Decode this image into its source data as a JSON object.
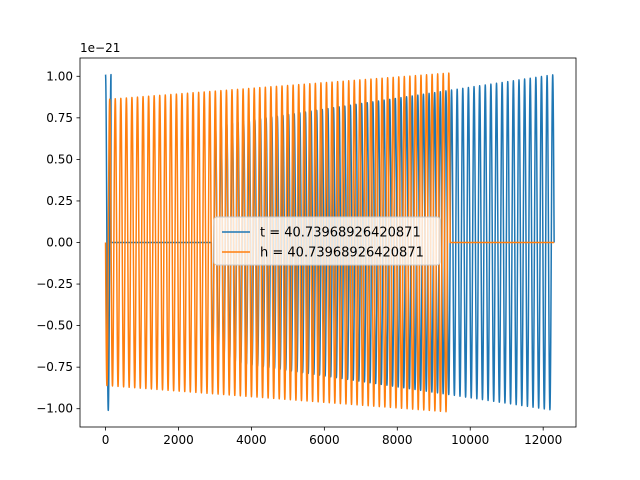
{
  "chart_data": {
    "type": "line",
    "offset_text": "1e−21",
    "xlim": [
      -700,
      12900
    ],
    "ylim": [
      -1.11,
      1.11
    ],
    "x_ticks": [
      0,
      2000,
      4000,
      6000,
      8000,
      10000,
      12000
    ],
    "x_tick_labels": [
      "0",
      "2000",
      "4000",
      "6000",
      "8000",
      "10000",
      "12000"
    ],
    "y_ticks": [
      -1.0,
      -0.75,
      -0.5,
      -0.25,
      0.0,
      0.25,
      0.5,
      0.75,
      1.0
    ],
    "y_tick_labels": [
      "−1.00",
      "−0.75",
      "−0.50",
      "−0.25",
      "0.00",
      "0.25",
      "0.50",
      "0.75",
      "1.00"
    ],
    "legend_position": "center",
    "series": [
      {
        "name": "t = 40.73968926420871",
        "color": "#1f77b4",
        "segments": [
          {
            "x_start": 0,
            "x_end": 150,
            "cycles": 1,
            "amp_start": 1.01,
            "amp_end": 1.01,
            "phase": 0.25
          },
          {
            "x_start": 150,
            "x_end": 2900,
            "flat": 0.0
          },
          {
            "x_start": 2900,
            "x_end": 12300,
            "cycles": 61,
            "amp_start": 0.7,
            "amp_end": 1.01,
            "phase": 0.5
          }
        ]
      },
      {
        "name": "h = 40.73968926420871",
        "color": "#ff7f0e",
        "segments": [
          {
            "x_start": 0,
            "x_end": 9450,
            "cycles": 62,
            "amp_start": 0.86,
            "amp_end": 1.02,
            "phase": 0.5
          },
          {
            "x_start": 9450,
            "x_end": 12300,
            "flat": 0.0
          }
        ]
      }
    ]
  }
}
